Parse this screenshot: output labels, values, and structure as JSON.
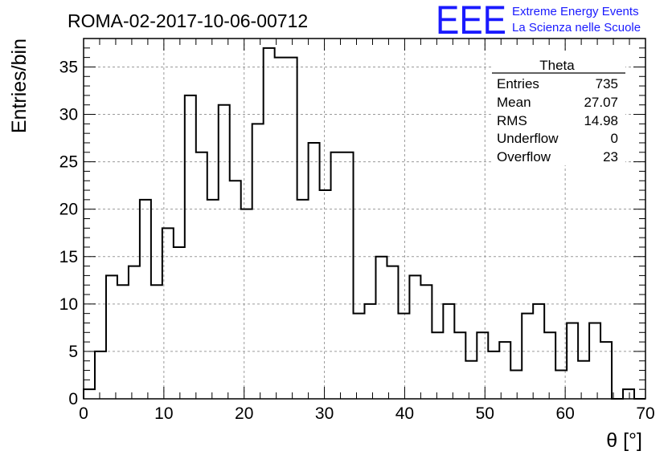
{
  "header": {
    "title": "ROMA-02-2017-10-06-00712",
    "logo": "EEE",
    "logo_line1": "Extreme Energy Events",
    "logo_line2": "La Scienza nelle Scuole",
    "logo_color": "#1a1aff"
  },
  "stats": {
    "name": "Theta",
    "rows": [
      {
        "label": "Entries",
        "value": "735"
      },
      {
        "label": "Mean",
        "value": "27.07"
      },
      {
        "label": "RMS",
        "value": "14.98"
      },
      {
        "label": "Underflow",
        "value": "0"
      },
      {
        "label": "Overflow",
        "value": "23"
      }
    ]
  },
  "chart_data": {
    "type": "histogram",
    "xlabel": "θ [°]",
    "ylabel": "Entries/bin",
    "xlim": [
      0,
      70
    ],
    "ylim": [
      0,
      38
    ],
    "x_ticks": [
      0,
      10,
      20,
      30,
      40,
      50,
      60,
      70
    ],
    "y_ticks": [
      0,
      5,
      10,
      15,
      20,
      25,
      30,
      35
    ],
    "grid": true,
    "bin_edges_start": 0,
    "bin_width": 1.4,
    "values": [
      1,
      5,
      13,
      12,
      14,
      21,
      12,
      18,
      16,
      32,
      26,
      21,
      31,
      23,
      20,
      29,
      37,
      36,
      36,
      21,
      27,
      22,
      26,
      26,
      9,
      10,
      15,
      14,
      9,
      13,
      12,
      7,
      10,
      7,
      4,
      7,
      5,
      6,
      3,
      9,
      10,
      7,
      3,
      8,
      4,
      8,
      6,
      0,
      1,
      0
    ]
  }
}
